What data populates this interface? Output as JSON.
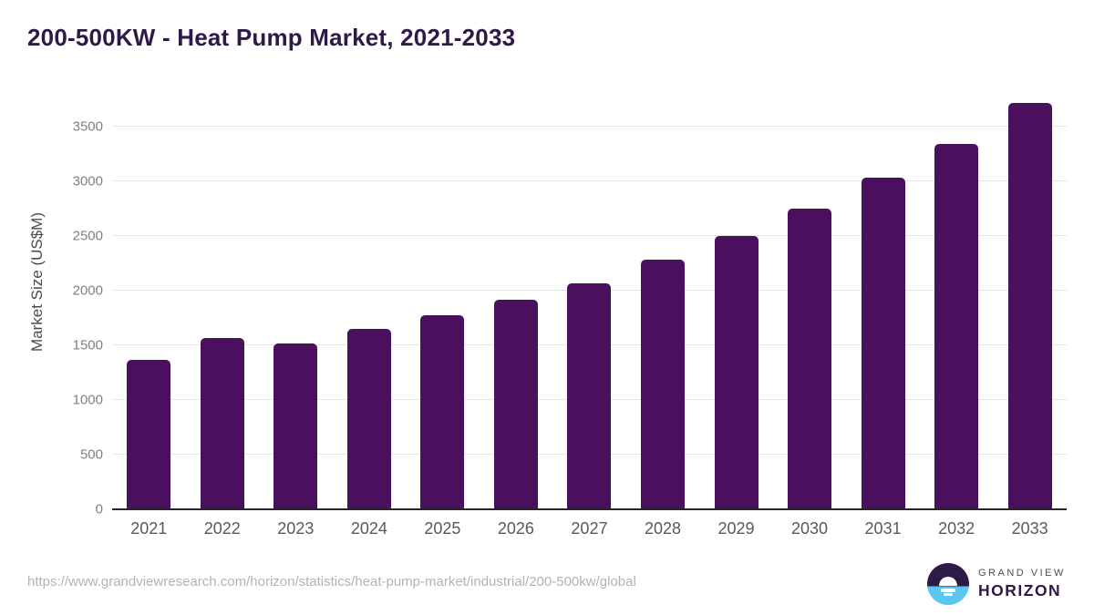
{
  "header": {
    "title": "200-500KW - Heat Pump Market, 2021-2033"
  },
  "chart_data": {
    "type": "bar",
    "title": "200-500KW - Heat Pump Market, 2021-2033",
    "xlabel": "",
    "ylabel": "Market Size (US$M)",
    "categories": [
      "2021",
      "2022",
      "2023",
      "2024",
      "2025",
      "2026",
      "2027",
      "2028",
      "2029",
      "2030",
      "2031",
      "2032",
      "2033"
    ],
    "values": [
      1370,
      1565,
      1520,
      1650,
      1775,
      1915,
      2070,
      2285,
      2500,
      2750,
      3030,
      3340,
      3720
    ],
    "ylim": [
      0,
      3500
    ],
    "y_ticks": [
      0,
      500,
      1000,
      1500,
      2000,
      2500,
      3000,
      3500
    ],
    "grid": "horizontal",
    "legend": "none",
    "bar_color": "#4a105e"
  },
  "footer": {
    "source_url": "https://www.grandviewresearch.com/horizon/statistics/heat-pump-market/industrial/200-500kw/global",
    "logo": {
      "line1": "GRAND VIEW",
      "line2": "HORIZON",
      "mark": "horizon-sun-circle"
    }
  },
  "colors": {
    "title": "#2e1a47",
    "bar": "#4a105e",
    "gridline": "#e6e6e6",
    "baseline": "#262626",
    "y_tick_label": "#808080",
    "x_tick_label": "#595959",
    "y_axis_title": "#4a4a4a",
    "url": "#b3b3b3",
    "logo_blue": "#5bc6f0",
    "logo_dark": "#2e1a47",
    "logo_gray": "#55465f"
  }
}
